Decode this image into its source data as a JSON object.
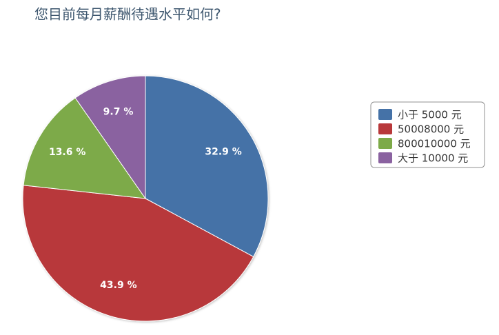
{
  "chart_data": {
    "type": "pie",
    "title": "您目前每月薪酬待遇水平如何?",
    "categories": [
      "小于 5000 元",
      "50008000 元",
      "800010000 元",
      "大于 10000 元"
    ],
    "values": [
      32.9,
      43.9,
      13.6,
      9.7
    ],
    "value_labels": [
      "32.9 %",
      "43.9 %",
      "13.6 %",
      "9.7 %"
    ],
    "colors": [
      "#4572a7",
      "#b8383a",
      "#7daa48",
      "#8a62a0"
    ],
    "legend": "right"
  }
}
